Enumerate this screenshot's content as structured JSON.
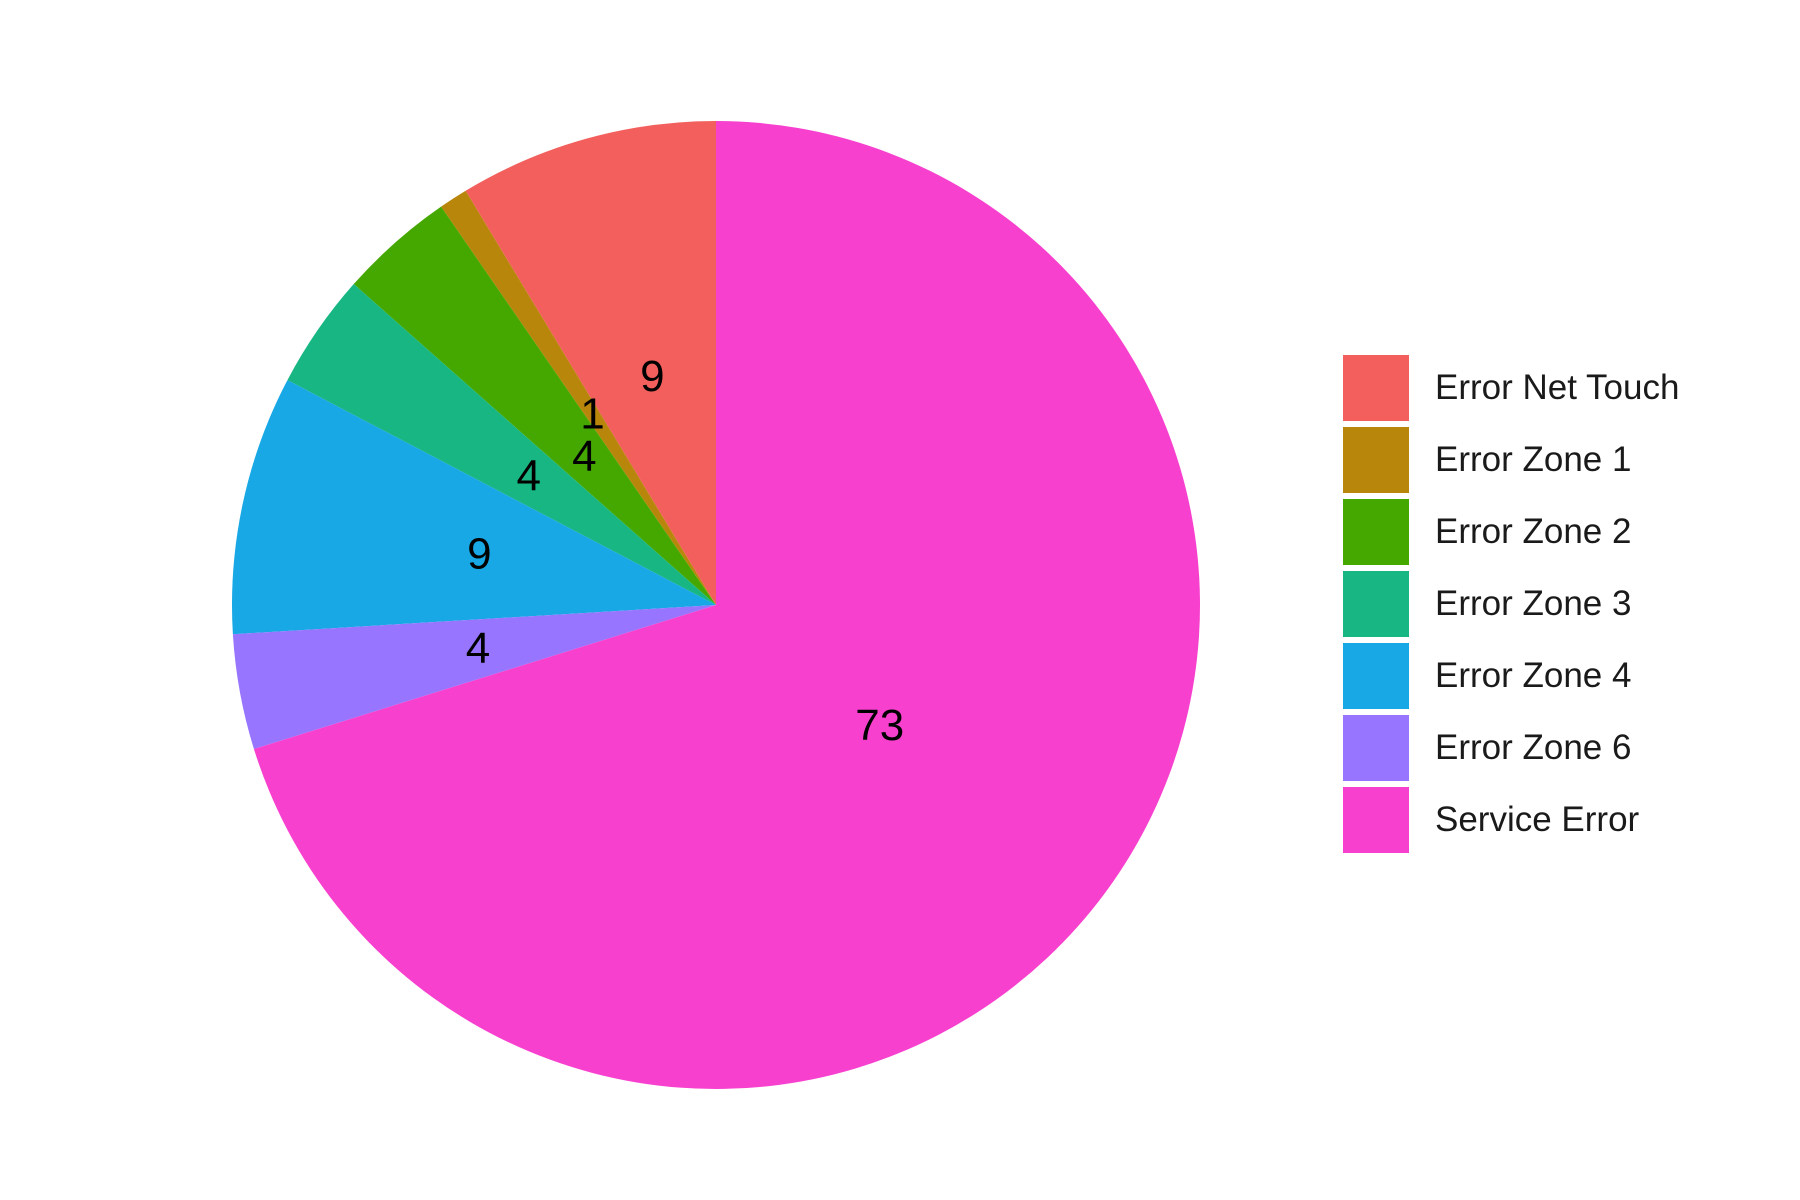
{
  "chart_data": {
    "type": "pie",
    "title": "",
    "categories": [
      "Error Net Touch",
      "Error Zone 1",
      "Error Zone 2",
      "Error Zone 3",
      "Error Zone 4",
      "Error Zone 6",
      "Service Error"
    ],
    "values": [
      9,
      1,
      4,
      4,
      9,
      4,
      73
    ],
    "data_labels": [
      "9",
      "1",
      "4",
      "4",
      "9",
      "4",
      "73"
    ],
    "colors": [
      "#F25F5C",
      "#B8860B",
      "#45A800",
      "#17B682",
      "#18A8E5",
      "#9775FF",
      "#F840CF"
    ],
    "start_angle": "12 o'clock",
    "direction": "counterclockwise from top, last slice fills clockwise",
    "legend_position": "right",
    "grid": false
  }
}
